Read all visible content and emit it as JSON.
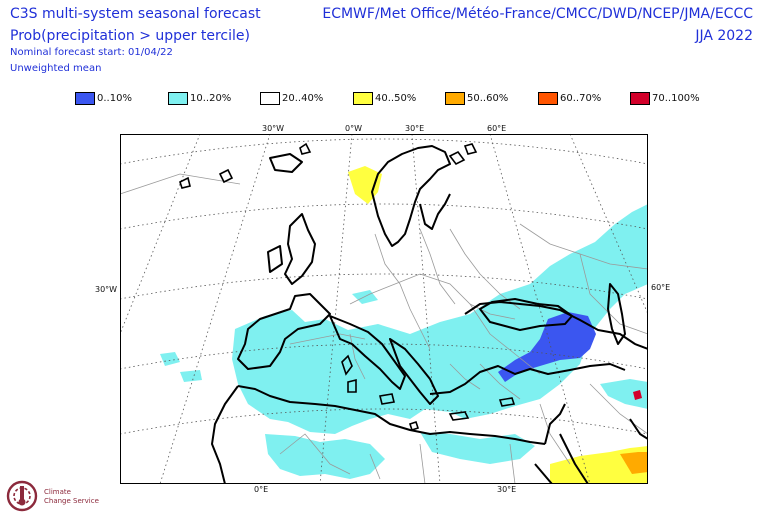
{
  "header": {
    "title_line1": "C3S multi-system seasonal forecast",
    "title_line2": "Prob(precipitation > upper tercile)",
    "start_line": "Nominal forecast start: 01/04/22",
    "mean_line": "Unweighted mean",
    "systems": "ECMWF/Met Office/Météo-France/CMCC/DWD/NCEP/JMA/ECCC",
    "season": "JJA 2022"
  },
  "legend": [
    {
      "label": "0..10%",
      "color": "#3b56f0"
    },
    {
      "label": "10..20%",
      "color": "#7ff0f0"
    },
    {
      "label": "20..40%",
      "color": "#ffffff"
    },
    {
      "label": "40..50%",
      "color": "#ffff40"
    },
    {
      "label": "50..60%",
      "color": "#ffaa00"
    },
    {
      "label": "60..70%",
      "color": "#ff5500"
    },
    {
      "label": "70..100%",
      "color": "#d2002a"
    }
  ],
  "axis_labels": {
    "top": [
      "30°W",
      "0°W",
      "30°E",
      "60°E"
    ],
    "left": "30°W",
    "right": "60°E",
    "bottom": [
      "0°E",
      "30°E"
    ]
  },
  "logo": {
    "line1": "Climate",
    "line2": "Change Service"
  }
}
